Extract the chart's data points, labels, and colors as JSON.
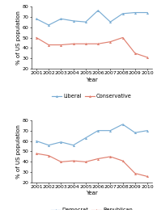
{
  "years": [
    2001,
    2002,
    2003,
    2004,
    2005,
    2006,
    2007,
    2008,
    2009,
    2010
  ],
  "liberal": [
    68,
    62,
    68,
    66,
    65,
    76,
    65,
    73,
    74,
    74
  ],
  "conservative": [
    50,
    43,
    43,
    44,
    44,
    44,
    46,
    50,
    35,
    31
  ],
  "democrat": [
    60,
    56,
    59,
    56,
    63,
    70,
    70,
    76,
    68,
    70
  ],
  "republican": [
    48,
    46,
    40,
    41,
    40,
    43,
    45,
    41,
    29,
    26
  ],
  "ylim": [
    20,
    80
  ],
  "yticks": [
    20,
    30,
    40,
    50,
    60,
    70,
    80
  ],
  "ylabel": "% of US population",
  "xlabel": "Year",
  "color_blue": "#7aadd4",
  "color_red": "#e08070",
  "legend1": [
    "Liberal",
    "Conservative"
  ],
  "legend2": [
    "Democrat",
    "Republican"
  ],
  "label_fontsize": 5.0,
  "tick_fontsize": 4.5,
  "legend_fontsize": 4.8,
  "linewidth": 0.85,
  "markersize": 2.2
}
